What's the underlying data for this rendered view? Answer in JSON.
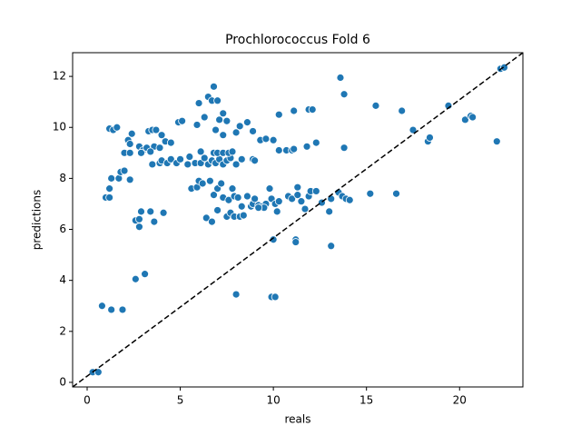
{
  "chart_data": {
    "type": "scatter",
    "title": "Prochlorococcus Fold 6",
    "x_label": "reals",
    "y_label": "predictions",
    "color": "#1f77b4",
    "edgecolor": "#ffffff",
    "diagonal": "dashed",
    "grid": false,
    "xlim": [
      -0.78,
      23.4
    ],
    "ylim": [
      -0.18,
      12.93
    ],
    "xticks": [
      0,
      5,
      10,
      15,
      20
    ],
    "yticks": [
      0,
      2,
      4,
      6,
      8,
      10,
      12
    ],
    "x": [
      0.3,
      0.6,
      0.8,
      1.3,
      1.9,
      2.6,
      3.1,
      8.0,
      9.9,
      10.1,
      10.0,
      11.2,
      11.2,
      13.1,
      1.0,
      1.2,
      1.2,
      1.3,
      1.7,
      1.8,
      2.0,
      2.3,
      2.6,
      2.8,
      2.8,
      2.9,
      3.4,
      3.6,
      4.1,
      1.2,
      1.4,
      1.6,
      2.0,
      2.3,
      2.2,
      2.3,
      2.4,
      2.8,
      3.0,
      3.2,
      3.3,
      3.5,
      3.7,
      3.6,
      3.9,
      2.9,
      3.4,
      4.0,
      4.2,
      4.5,
      4.9,
      5.1,
      3.5,
      3.9,
      4.0,
      4.3,
      4.5,
      4.8,
      5.0,
      5.4,
      5.5,
      5.8,
      6.1,
      6.3,
      6.5,
      6.7,
      6.9,
      7.1,
      7.3,
      7.5,
      7.7,
      8.0,
      8.3,
      8.9,
      9.0,
      6.8,
      7.0,
      7.3,
      7.6,
      7.8,
      6.1,
      9.3,
      9.6,
      10.0,
      10.3,
      10.7,
      11.0,
      11.1,
      11.8,
      12.3,
      5.9,
      6.0,
      6.5,
      6.7,
      6.8,
      7.0,
      7.1,
      7.3,
      7.5,
      6.3,
      6.9,
      7.3,
      8.0,
      8.2,
      8.6,
      8.9,
      10.3,
      11.1,
      11.9,
      12.1,
      13.6,
      13.8,
      15.5,
      16.9,
      17.5,
      18.3,
      18.4,
      19.4,
      20.3,
      20.6,
      20.7,
      22.0,
      22.2,
      22.4,
      13.8,
      5.6,
      5.9,
      6.0,
      6.2,
      6.6,
      6.8,
      7.0,
      7.2,
      7.0,
      7.3,
      7.6,
      7.8,
      7.9,
      8.1,
      7.5,
      7.7,
      7.9,
      8.2,
      8.4,
      6.4,
      6.7,
      8.6,
      8.8,
      8.9,
      9.0,
      9.2,
      9.4,
      9.6,
      9.8,
      9.9,
      10.1,
      10.2,
      10.3,
      10.8,
      11.0,
      11.3,
      11.3,
      11.5,
      11.7,
      11.9,
      12.0,
      12.3,
      12.6,
      13.0,
      13.1,
      13.5,
      13.7,
      13.9,
      14.1,
      15.2,
      16.6,
      9.5,
      9.2,
      8.3
    ],
    "values": [
      0.4,
      0.4,
      3.0,
      2.85,
      2.85,
      4.05,
      4.25,
      3.45,
      3.35,
      3.35,
      5.6,
      5.6,
      5.5,
      5.35,
      7.25,
      7.25,
      7.6,
      8.0,
      8.0,
      8.25,
      8.3,
      7.95,
      6.35,
      6.4,
      6.1,
      6.7,
      6.7,
      6.3,
      6.65,
      9.95,
      9.9,
      10.0,
      9.0,
      9.0,
      9.5,
      9.35,
      9.75,
      9.25,
      9.1,
      9.2,
      9.85,
      9.9,
      9.9,
      9.25,
      9.2,
      9.0,
      9.05,
      9.7,
      9.45,
      9.4,
      10.2,
      10.25,
      8.55,
      8.6,
      8.7,
      8.6,
      8.75,
      8.6,
      8.75,
      8.55,
      8.85,
      8.6,
      8.6,
      8.8,
      8.55,
      8.7,
      8.6,
      8.75,
      8.55,
      8.7,
      8.8,
      8.55,
      8.75,
      8.75,
      8.7,
      9.0,
      9.0,
      9.0,
      9.0,
      9.05,
      9.05,
      9.5,
      9.55,
      9.5,
      9.1,
      9.1,
      9.1,
      9.15,
      9.25,
      9.4,
      10.1,
      10.95,
      11.2,
      11.05,
      11.6,
      11.05,
      10.3,
      10.55,
      10.25,
      10.4,
      9.9,
      9.7,
      9.8,
      10.05,
      10.2,
      9.85,
      10.5,
      10.65,
      10.7,
      10.7,
      11.95,
      11.3,
      10.85,
      10.65,
      9.9,
      9.45,
      9.6,
      10.85,
      10.3,
      10.45,
      10.4,
      9.45,
      12.3,
      12.35,
      9.2,
      7.6,
      7.65,
      7.9,
      7.8,
      7.9,
      7.35,
      7.6,
      7.8,
      6.75,
      7.25,
      7.15,
      7.6,
      7.3,
      7.25,
      6.5,
      6.65,
      6.5,
      6.5,
      6.55,
      6.45,
      6.3,
      7.3,
      6.9,
      7.0,
      7.2,
      6.95,
      6.9,
      7.0,
      7.6,
      7.2,
      7.0,
      6.7,
      7.1,
      7.3,
      7.2,
      7.35,
      7.65,
      7.1,
      6.8,
      7.3,
      7.5,
      7.5,
      7.05,
      6.7,
      7.2,
      7.45,
      7.3,
      7.2,
      7.15,
      7.4,
      7.4,
      6.85,
      6.85,
      6.9
    ]
  }
}
